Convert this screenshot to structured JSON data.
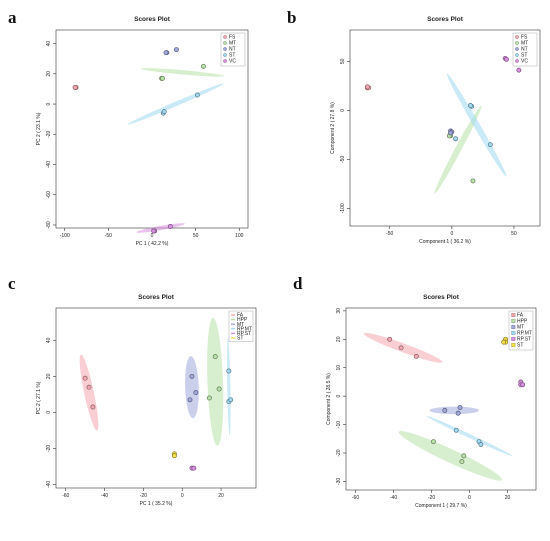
{
  "panel_letters": [
    "a",
    "b",
    "c",
    "d"
  ],
  "chart_data": [
    {
      "type": "scatter",
      "title": "Scores Plot",
      "xlabel": "PC 1 ( 42.2 %)",
      "ylabel": "PC 2 ( 23.1 %)",
      "xlim": [
        -110,
        110
      ],
      "ylim": [
        -82,
        49
      ],
      "xticks": [
        -100,
        -50,
        0,
        50,
        100
      ],
      "yticks": [
        -80,
        -60,
        -40,
        -20,
        0,
        20,
        40
      ],
      "xtick_labels": [
        "-100",
        "-50",
        "0",
        "50",
        "100"
      ],
      "ytick_labels": [
        "-80",
        "-60",
        "-40",
        "-20",
        "0",
        "20",
        "40"
      ],
      "legend": {
        "position": "top-right",
        "shape": "circle"
      },
      "series": [
        {
          "name": "FS",
          "color": "#f4a7b1",
          "points": [
            [
              -88,
              11
            ],
            [
              -87,
              11
            ],
            [
              -88,
              11
            ]
          ],
          "ellipse": null
        },
        {
          "name": "MT",
          "color": "#b7e1a6",
          "points": [
            [
              11,
              17
            ],
            [
              59,
              25
            ],
            [
              12,
              17
            ]
          ],
          "ellipse": {
            "cx": 35,
            "cy": 21,
            "rx": 48,
            "ry": 2.5,
            "angle": -5
          }
        },
        {
          "name": "NT",
          "color": "#9fa8da",
          "points": [
            [
              17,
              34
            ],
            [
              28,
              36
            ],
            [
              16,
              34
            ]
          ],
          "ellipse": null
        },
        {
          "name": "ST",
          "color": "#9fd8f0",
          "points": [
            [
              13,
              -6
            ],
            [
              52,
              6
            ],
            [
              14,
              -5
            ]
          ],
          "ellipse": {
            "cx": 27,
            "cy": 0,
            "rx": 60,
            "ry": 2.5,
            "angle": 23
          }
        },
        {
          "name": "VC",
          "color": "#d98fe0",
          "points": [
            [
              3,
              -84
            ],
            [
              21,
              -81
            ],
            [
              2,
              -84
            ]
          ],
          "ellipse": {
            "cx": 10,
            "cy": -82,
            "rx": 28,
            "ry": 2.5,
            "angle": 10
          }
        }
      ]
    },
    {
      "type": "scatter",
      "title": "Scores Plot",
      "xlabel": "Component 1 ( 36.2 %)",
      "ylabel": "Component 2 ( 27.8 %)",
      "xlim": [
        -82,
        71
      ],
      "ylim": [
        -118,
        82
      ],
      "xticks": [
        -50,
        0,
        50
      ],
      "yticks": [
        -100,
        -50,
        0,
        50
      ],
      "xtick_labels": [
        "-50",
        "0",
        "50"
      ],
      "ytick_labels": [
        "-100",
        "-50",
        "0",
        "50"
      ],
      "legend": {
        "position": "top-right",
        "shape": "circle"
      },
      "series": [
        {
          "name": "FS",
          "color": "#f4a7b1",
          "points": [
            [
              -68,
              23
            ],
            [
              -67,
              23
            ],
            [
              -68,
              24
            ]
          ],
          "ellipse": null
        },
        {
          "name": "MT",
          "color": "#b7e1a6",
          "points": [
            [
              -1,
              -26
            ],
            [
              17,
              -72
            ],
            [
              -2,
              -26
            ]
          ],
          "ellipse": {
            "cx": 5,
            "cy": -40,
            "rx": 40,
            "ry": 2.5,
            "angle": 62
          }
        },
        {
          "name": "NT",
          "color": "#9fa8da",
          "points": [
            [
              -1,
              -21
            ],
            [
              0,
              -22
            ],
            [
              -1,
              -23
            ]
          ],
          "ellipse": null
        },
        {
          "name": "ST",
          "color": "#9fd8f0",
          "points": [
            [
              3,
              -29
            ],
            [
              16,
              4
            ],
            [
              31,
              -35
            ],
            [
              15,
              5
            ]
          ],
          "ellipse": {
            "cx": 20,
            "cy": -15,
            "rx": 48,
            "ry": 2.5,
            "angle": -60
          }
        },
        {
          "name": "VC",
          "color": "#d98fe0",
          "points": [
            [
              43,
              53
            ],
            [
              44,
              52
            ],
            [
              54,
              41
            ]
          ],
          "ellipse": null
        }
      ]
    },
    {
      "type": "scatter",
      "title": "Scores Plot",
      "xlabel": "PC 1 ( 35.2 %)",
      "ylabel": "PC 2 ( 27.1 %)",
      "xlim": [
        -65,
        38
      ],
      "ylim": [
        -42,
        58
      ],
      "xticks": [
        -60,
        -40,
        -20,
        0,
        20
      ],
      "yticks": [
        -40,
        -20,
        0,
        20,
        40
      ],
      "xtick_labels": [
        "-60",
        "-40",
        "-20",
        "0",
        "20"
      ],
      "ytick_labels": [
        "-40",
        "-20",
        "0",
        "20",
        "40"
      ],
      "legend": {
        "position": "top-right",
        "shape": "line"
      },
      "series": [
        {
          "name": "FA",
          "color": "#f4a7b1",
          "points": [
            [
              -50,
              19
            ],
            [
              -48,
              14
            ],
            [
              -46,
              3
            ]
          ],
          "ellipse": {
            "cx": -48,
            "cy": 11,
            "rx": 20,
            "ry": 2.5,
            "angle": -78
          }
        },
        {
          "name": "HPP",
          "color": "#b7e1a6",
          "points": [
            [
              14,
              8
            ],
            [
              17,
              31
            ],
            [
              19,
              13
            ]
          ],
          "ellipse": {
            "cx": 17,
            "cy": 17,
            "rx": 33,
            "ry": 4,
            "angle": -88
          }
        },
        {
          "name": "MT",
          "color": "#9fa8da",
          "points": [
            [
              4,
              7
            ],
            [
              5,
              20
            ],
            [
              7,
              11
            ]
          ],
          "ellipse": {
            "cx": 5,
            "cy": 14,
            "rx": 16,
            "ry": 3.5,
            "angle": -88
          }
        },
        {
          "name": "RP.MT",
          "color": "#9fd8f0",
          "points": [
            [
              24,
              23
            ],
            [
              24,
              6
            ],
            [
              25,
              7
            ]
          ],
          "ellipse": {
            "cx": 24,
            "cy": 14,
            "rx": 25,
            "ry": 0.8,
            "angle": -89
          }
        },
        {
          "name": "RP.ST",
          "color": "#d98fe0",
          "points": [
            [
              5,
              -31
            ],
            [
              6,
              -31
            ]
          ],
          "ellipse": null
        },
        {
          "name": "ST",
          "color": "#f5e04a",
          "points": [
            [
              -4,
              -23
            ],
            [
              -4,
              -24
            ]
          ],
          "ellipse": null
        }
      ]
    },
    {
      "type": "scatter",
      "title": "Scores Plot",
      "xlabel": "Component 1 ( 29.7 %)",
      "ylabel": "Component 2 ( 28.5 %)",
      "xlim": [
        -65,
        35
      ],
      "ylim": [
        -33,
        31
      ],
      "xticks": [
        -60,
        -40,
        -20,
        0,
        20
      ],
      "yticks": [
        -30,
        -20,
        -10,
        0,
        10,
        20,
        30
      ],
      "xtick_labels": [
        "-60",
        "-40",
        "-20",
        "0",
        "20"
      ],
      "ytick_labels": [
        "-30",
        "-20",
        "-10",
        "0",
        "10",
        "20",
        "30"
      ],
      "legend": {
        "position": "top-right",
        "shape": "square"
      },
      "series": [
        {
          "name": "FA",
          "color": "#f4a7b1",
          "points": [
            [
              -42,
              20
            ],
            [
              -36,
              17
            ],
            [
              -28,
              14
            ]
          ],
          "ellipse": {
            "cx": -35,
            "cy": 17,
            "rx": 22,
            "ry": 2.3,
            "angle": -20
          }
        },
        {
          "name": "HPP",
          "color": "#b7e1a6",
          "points": [
            [
              -19,
              -16
            ],
            [
              -3,
              -21
            ],
            [
              -4,
              -23
            ]
          ],
          "ellipse": {
            "cx": -10,
            "cy": -21,
            "rx": 30,
            "ry": 3.5,
            "angle": -25
          }
        },
        {
          "name": "MT",
          "color": "#9fa8da",
          "points": [
            [
              -13,
              -5
            ],
            [
              -5,
              -4
            ],
            [
              -6,
              -6
            ]
          ],
          "ellipse": {
            "cx": -8,
            "cy": -5,
            "rx": 13,
            "ry": 2,
            "angle": 0
          }
        },
        {
          "name": "RP.MT",
          "color": "#9fd8f0",
          "points": [
            [
              -7,
              -12
            ],
            [
              5,
              -16
            ],
            [
              6,
              -17
            ]
          ],
          "ellipse": {
            "cx": 0,
            "cy": -14,
            "rx": 25,
            "ry": 1,
            "angle": -25
          }
        },
        {
          "name": "RP.ST",
          "color": "#d98fe0",
          "points": [
            [
              27,
              5
            ],
            [
              27,
              4
            ],
            [
              28,
              4
            ]
          ],
          "ellipse": null
        },
        {
          "name": "ST",
          "color": "#f5e04a",
          "points": [
            [
              19,
              20
            ],
            [
              19,
              19
            ],
            [
              18,
              19
            ]
          ],
          "ellipse": null
        }
      ]
    }
  ]
}
